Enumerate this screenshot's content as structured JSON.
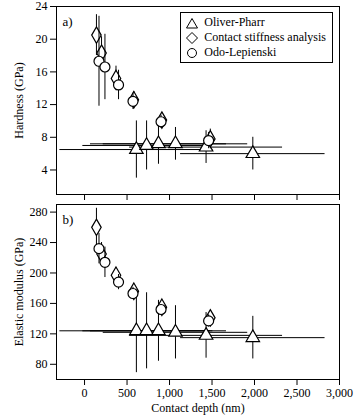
{
  "chart_data": [
    {
      "type": "scatter",
      "annotation": "a)",
      "y_label": "Hardness (GPa)",
      "xlim": [
        -330,
        3000
      ],
      "xticks": [
        0,
        500,
        1000,
        1500,
        2000,
        2500,
        3000
      ],
      "ylim": [
        1,
        24
      ],
      "yticks": [
        4,
        8,
        12,
        16,
        20,
        24
      ],
      "tick_labels": "y",
      "grid": false,
      "legend": "upper right",
      "series": [
        {
          "name": "Oliver-Pharr",
          "marker": "triangle",
          "color": "#000000",
          "x": [
            610,
            730,
            870,
            1070,
            1430,
            1980
          ],
          "values": [
            6.5,
            7.0,
            7.2,
            7.2,
            6.8,
            6.0
          ],
          "xerr": [
            900,
            750,
            800,
            850,
            900,
            850
          ],
          "yerr": [
            3.5,
            3.0,
            2.5,
            2.0,
            2.0,
            2.0
          ]
        },
        {
          "name": "Contact stiffness analysis",
          "marker": "diamond",
          "color": "#000000",
          "x": [
            140,
            200,
            370,
            580,
            910,
            1480
          ],
          "values": [
            20.5,
            18.3,
            15.2,
            12.6,
            10.1,
            7.8
          ],
          "xerr": [
            40,
            40,
            40,
            40,
            40,
            40
          ],
          "yerr": [
            2.5,
            2.0,
            1.5,
            1.0,
            0.8,
            1.2
          ]
        },
        {
          "name": "Odo-Lepienski",
          "marker": "circle",
          "color": "#000000",
          "x": [
            170,
            240,
            400,
            570,
            900,
            1460
          ],
          "values": [
            17.3,
            16.6,
            14.4,
            12.4,
            9.9,
            7.6
          ],
          "xerr": [
            40,
            40,
            40,
            40,
            40,
            40
          ],
          "yerr": [
            5.5,
            4.0,
            1.8,
            1.0,
            0.8,
            1.0
          ]
        }
      ]
    },
    {
      "type": "scatter",
      "annotation": "b)",
      "y_label": "Elastic modulus (GPa)",
      "x_label": "Contact depth (nm)",
      "xlim": [
        -330,
        3000
      ],
      "xticks": [
        0,
        500,
        1000,
        1500,
        2000,
        2500,
        3000
      ],
      "ylim": [
        60,
        290
      ],
      "yticks": [
        80,
        120,
        160,
        200,
        240,
        280
      ],
      "tick_labels": true,
      "grid": false,
      "series": [
        {
          "name": "Oliver-Pharr",
          "marker": "triangle",
          "color": "#000000",
          "x": [
            610,
            730,
            870,
            1070,
            1430,
            1980
          ],
          "values": [
            124,
            124,
            124,
            122,
            118,
            115
          ],
          "xerr": [
            900,
            750,
            800,
            850,
            900,
            850
          ],
          "yerr": [
            55,
            50,
            40,
            35,
            30,
            28
          ]
        },
        {
          "name": "Contact stiffness analysis",
          "marker": "diamond",
          "color": "#000000",
          "x": [
            140,
            200,
            370,
            580,
            910,
            1480
          ],
          "values": [
            260,
            225,
            197,
            176,
            155,
            141
          ],
          "xerr": [
            40,
            40,
            40,
            40,
            40,
            40
          ],
          "yerr": [
            25,
            15,
            10,
            8,
            6,
            8
          ]
        },
        {
          "name": "Odo-Lepienski",
          "marker": "circle",
          "color": "#000000",
          "x": [
            170,
            240,
            400,
            570,
            900,
            1460
          ],
          "values": [
            232,
            214,
            188,
            173,
            152,
            137
          ],
          "xerr": [
            40,
            40,
            40,
            40,
            40,
            40
          ],
          "yerr": [
            20,
            20,
            10,
            8,
            6,
            8
          ]
        }
      ]
    }
  ]
}
